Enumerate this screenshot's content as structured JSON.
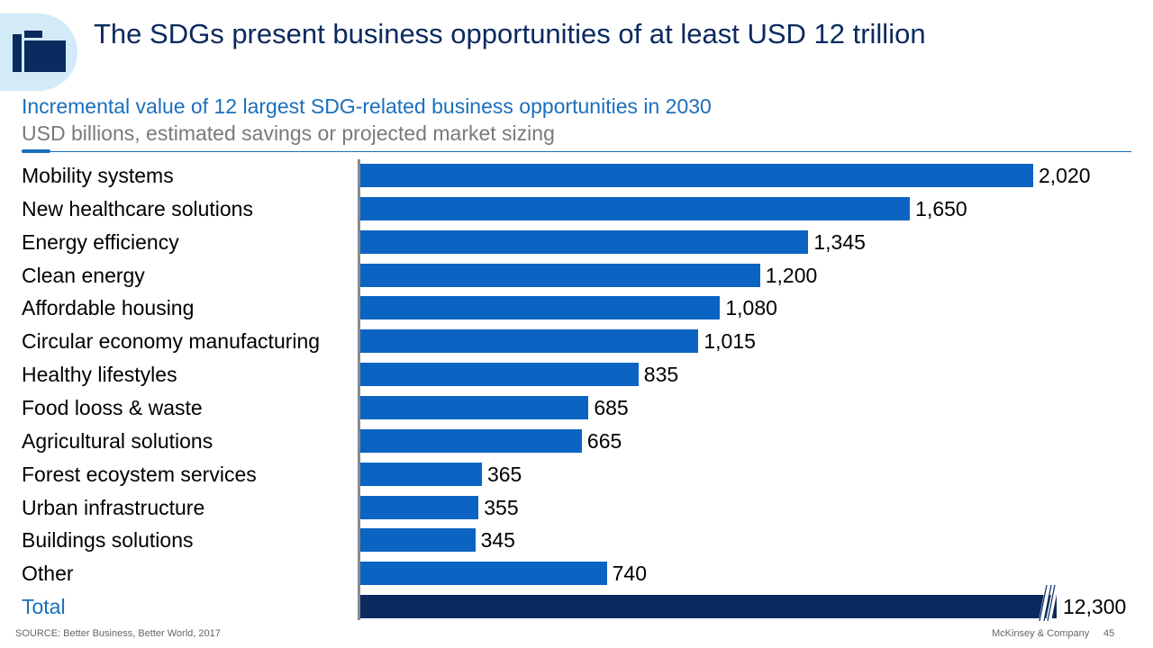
{
  "header": {
    "title": "The SDGs present business opportunities of at least USD 12 trillion",
    "icon": "folder-icon"
  },
  "chart_data": {
    "type": "bar",
    "orientation": "horizontal",
    "title": "Incremental value of 12 largest SDG-related business opportunities in 2030",
    "subtitle": "USD billions, estimated savings or projected market sizing",
    "categories": [
      "Mobility systems",
      "New healthcare solutions",
      "Energy efficiency",
      "Clean energy",
      "Affordable housing",
      "Circular economy manufacturing",
      "Healthy lifestyles",
      "Food looss & waste",
      "Agricultural solutions",
      "Forest ecoystem services",
      "Urban infrastructure",
      "Buildings solutions",
      "Other"
    ],
    "values": [
      2020,
      1650,
      1345,
      1200,
      1080,
      1015,
      835,
      685,
      665,
      365,
      355,
      345,
      740
    ],
    "labels": [
      "2,020",
      "1,650",
      "1,345",
      "1,200",
      "1,080",
      "1,015",
      "835",
      "685",
      "665",
      "365",
      "355",
      "345",
      "740"
    ],
    "total": {
      "label": "Total",
      "value": 12300,
      "value_label": "12,300",
      "axis_break": true
    },
    "colors": {
      "bar": "#0b64c2",
      "total_bar": "#0b2a60",
      "total_label": "#1a6fbc"
    }
  },
  "footer": {
    "source": "SOURCE: Better Business, Better World, 2017",
    "brand": "McKinsey & Company",
    "page_number": "45"
  }
}
